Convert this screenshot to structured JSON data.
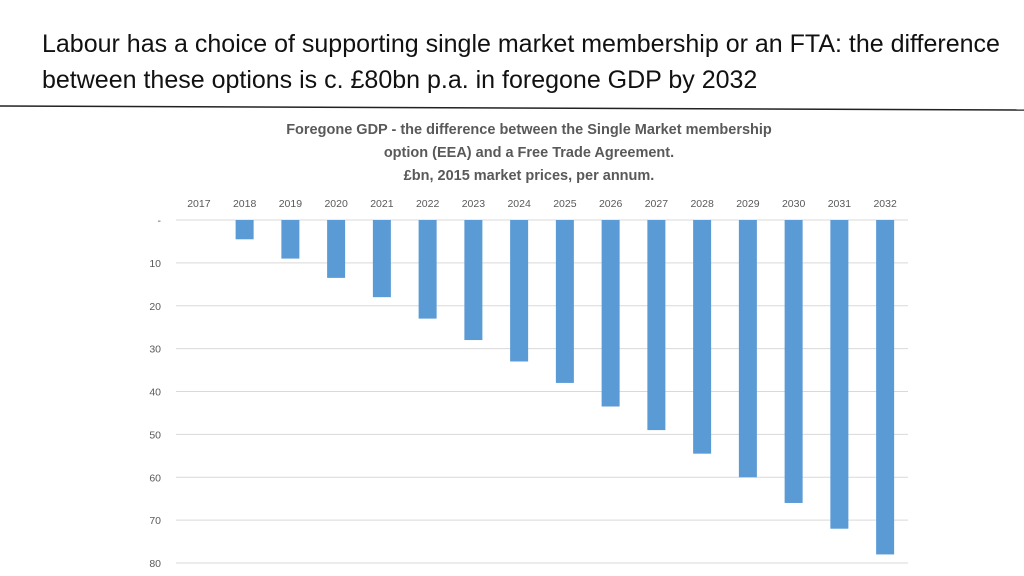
{
  "slide": {
    "title": "Labour has a choice of supporting single market membership or an FTA:  the difference between these options is c. £80bn p.a. in foregone GDP by 2032"
  },
  "chart_data": {
    "type": "bar",
    "title_lines": [
      "Foregone GDP - the difference between the Single Market membership",
      "option (EEA) and a Free Trade Agreement.",
      "£bn, 2015 market prices, per annum."
    ],
    "categories": [
      "2017",
      "2018",
      "2019",
      "2020",
      "2021",
      "2022",
      "2023",
      "2024",
      "2025",
      "2026",
      "2027",
      "2028",
      "2029",
      "2030",
      "2031",
      "2032"
    ],
    "values": [
      0,
      4.5,
      9,
      13.5,
      18,
      23,
      28,
      33,
      38,
      43.5,
      49,
      54.5,
      60,
      66,
      72,
      78
    ],
    "y_ticks": [
      "-",
      "10",
      "20",
      "30",
      "40",
      "50",
      "60",
      "70",
      "80"
    ],
    "ylim": [
      0,
      80
    ],
    "y_inverted": true,
    "x_axis_position": "top",
    "gridlines": true,
    "bar_color": "#5b9bd5",
    "grid_color": "#d9d9d9"
  }
}
